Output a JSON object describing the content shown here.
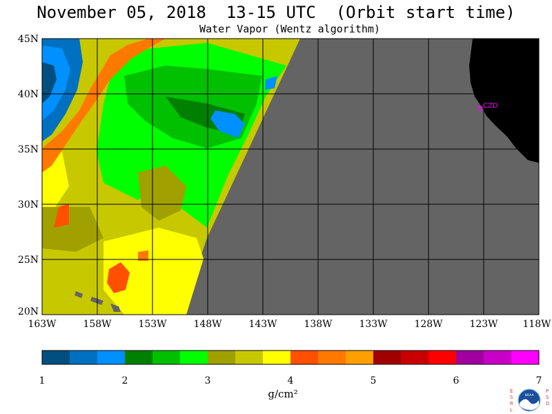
{
  "header": {
    "title": "November 05, 2018  13-15 UTC  (Orbit start time)",
    "subtitle": "Water Vapor (Wentz algorithm)"
  },
  "map": {
    "lat_labels": [
      "45N",
      "40N",
      "35N",
      "30N",
      "25N",
      "20N"
    ],
    "lon_labels": [
      "163W",
      "158W",
      "153W",
      "148W",
      "143W",
      "138W",
      "133W",
      "128W",
      "123W",
      "118W"
    ],
    "station_label": "CZD",
    "colors": {
      "land": "#000000",
      "no_data": "#646464",
      "station": "#ff00ff",
      "grid": "#000000"
    }
  },
  "colorbar": {
    "tick_labels": [
      "1",
      "2",
      "3",
      "4",
      "5",
      "6",
      "7"
    ],
    "unit": "g/cm²",
    "colors": [
      "#004f80",
      "#0070c0",
      "#0090ff",
      "#008000",
      "#00c000",
      "#00ff00",
      "#a0a000",
      "#c8c800",
      "#ffff00",
      "#ff5000",
      "#ff7800",
      "#ffa000",
      "#a00000",
      "#c80000",
      "#ff0000",
      "#a000a0",
      "#c800c8",
      "#ff00ff"
    ]
  },
  "logo": {
    "left_letters": "ESRL",
    "right_letters": "PSD",
    "center_text": "NOAA"
  }
}
